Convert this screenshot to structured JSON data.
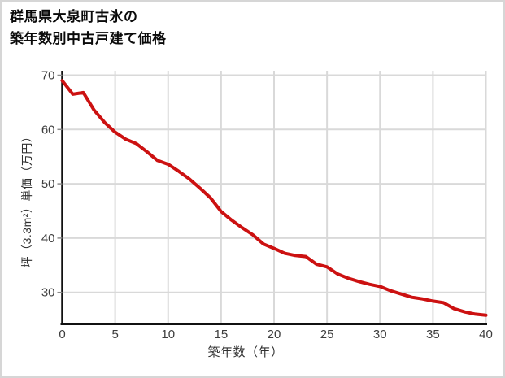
{
  "page": {
    "background": "#ffffff",
    "border_color": "#d6d6d6"
  },
  "title": {
    "line1": "群馬県大泉町古氷の",
    "line2": "築年数別中古戸建て価格"
  },
  "chart_data": {
    "type": "line",
    "title": "群馬県大泉町古氷の築年数別中古戸建て価格",
    "xlabel": "築年数（年）",
    "ylabel": "坪（3.3m²）単価（万円）",
    "xlim": [
      0,
      40
    ],
    "ylim": [
      24,
      70.5
    ],
    "x_ticks": [
      0,
      5,
      10,
      15,
      20,
      25,
      30,
      35,
      40
    ],
    "y_ticks": [
      30,
      40,
      50,
      60,
      70
    ],
    "grid": true,
    "legend": false,
    "line_color": "#cc1111",
    "grid_color": "#d9d9d9",
    "axis_color": "#111111",
    "tick_label_color": "#3d3d3d",
    "x": [
      0,
      1,
      2,
      3,
      4,
      5,
      6,
      7,
      8,
      9,
      10,
      11,
      12,
      13,
      14,
      15,
      16,
      17,
      18,
      19,
      20,
      21,
      22,
      23,
      24,
      25,
      26,
      27,
      28,
      29,
      30,
      31,
      32,
      33,
      34,
      35,
      36,
      37,
      38,
      39,
      40
    ],
    "values": [
      69.0,
      66.5,
      66.8,
      63.6,
      61.3,
      59.5,
      58.2,
      57.4,
      55.9,
      54.3,
      53.6,
      52.3,
      50.9,
      49.2,
      47.4,
      44.9,
      43.3,
      41.9,
      40.6,
      38.9,
      38.1,
      37.2,
      36.8,
      36.6,
      35.2,
      34.7,
      33.4,
      32.6,
      32.0,
      31.5,
      31.1,
      30.3,
      29.7,
      29.1,
      28.8,
      28.4,
      28.1,
      27.0,
      26.4,
      26.0,
      25.8
    ]
  }
}
